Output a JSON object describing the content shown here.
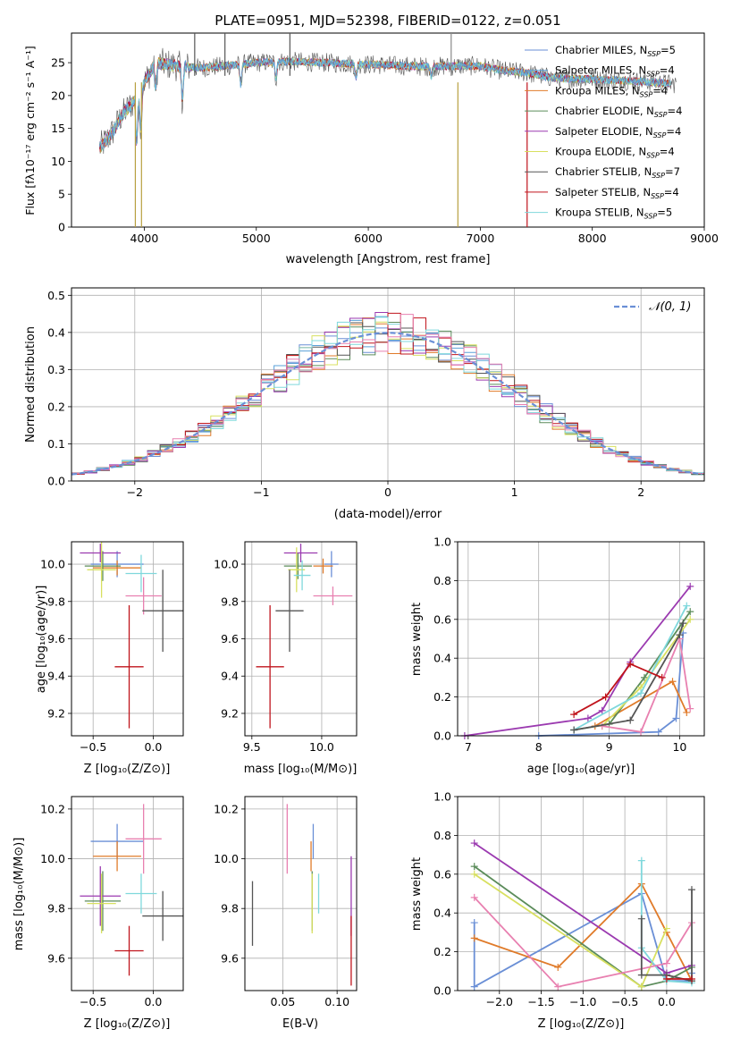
{
  "chart_data": [
    {
      "type": "line",
      "title": "PLATE=0951, MJD=52398, FIBERID=0122, z=0.051",
      "xlabel": "wavelength [Angstrom, rest frame]",
      "ylabel": "Flux [fλ10⁻¹⁷ erg cm⁻² s⁻¹ A⁻¹]",
      "xlim": [
        3350,
        9000
      ],
      "ylim": [
        0,
        29.5
      ],
      "xticks": [
        4000,
        5000,
        6000,
        7000,
        8000,
        9000
      ],
      "yticks": [
        0,
        5,
        10,
        15,
        20,
        25
      ],
      "legend": "right",
      "series": [
        {
          "name": "Chabrier MILES, N_SSP=5",
          "color": "#6a8fd6"
        },
        {
          "name": "Salpeter MILES, N_SSP=4",
          "color": "#5aa0d8"
        },
        {
          "name": "Kroupa MILES, N_SSP=4",
          "color": "#e07b2a"
        },
        {
          "name": "Chabrier ELODIE, N_SSP=4",
          "color": "#5b8c5a"
        },
        {
          "name": "Salpeter ELODIE, N_SSP=4",
          "color": "#9b3ab0"
        },
        {
          "name": "Kroupa ELODIE, N_SSP=4",
          "color": "#d8e060"
        },
        {
          "name": "Chabrier STELIB, N_SSP=7",
          "color": "#555555"
        },
        {
          "name": "Salpeter STELIB, N_SSP=4",
          "color": "#c0141c"
        },
        {
          "name": "Kroupa STELIB, N_SSP=5",
          "color": "#7fd8dc"
        }
      ],
      "spectrum_knots": {
        "x": [
          3600,
          3700,
          3800,
          3900,
          4000,
          4100,
          4300,
          4500,
          4800,
          5000,
          5300,
          5600,
          5900,
          6200,
          6500,
          6800,
          7000,
          7200,
          7400,
          7600,
          7800,
          8000,
          8200,
          8400,
          8700
        ],
        "y": [
          12,
          14,
          17,
          19,
          22,
          25,
          24.5,
          24.2,
          24.6,
          25,
          25.2,
          25,
          24.8,
          24.6,
          24.4,
          24.5,
          24.5,
          23.8,
          23.5,
          22.8,
          22.5,
          22.5,
          22.3,
          22.2,
          21.8
        ]
      }
    },
    {
      "type": "line",
      "xlabel": "(data-model)/error",
      "ylabel": "Normed distribution",
      "xlim": [
        -2.5,
        2.5
      ],
      "ylim": [
        0,
        0.52
      ],
      "xticks": [
        -2,
        -1,
        0,
        1,
        2
      ],
      "yticks": [
        0.0,
        0.1,
        0.2,
        0.3,
        0.4,
        0.5
      ],
      "legend": "top-right",
      "legend_label": "𝒩(0, 1)",
      "bin_width": 0.1
    },
    {
      "type": "scatter",
      "xlabel": "Z [log₁₀(Z/Z⊙)]",
      "ylabel": "age  [log₁₀(age/yr)]",
      "xlim": [
        -0.68,
        0.25
      ],
      "ylim": [
        9.08,
        10.12
      ],
      "xticks": [
        -0.5,
        0.0
      ],
      "yticks": [
        9.2,
        9.4,
        9.6,
        9.8,
        10.0
      ],
      "points": [
        {
          "x": -0.3,
          "y": 10.0,
          "xerr": 0.22,
          "yerr": 0.07,
          "color": "#6a8fd6"
        },
        {
          "x": -0.3,
          "y": 9.98,
          "xerr": 0.2,
          "yerr": 0.04,
          "color": "#e07b2a"
        },
        {
          "x": -0.42,
          "y": 9.99,
          "xerr": 0.15,
          "yerr": 0.08,
          "color": "#5b8c5a"
        },
        {
          "x": -0.44,
          "y": 10.06,
          "xerr": 0.17,
          "yerr": 0.05,
          "color": "#9b3ab0"
        },
        {
          "x": -0.43,
          "y": 9.97,
          "xerr": 0.12,
          "yerr": 0.15,
          "color": "#d8e060"
        },
        {
          "x": -0.1,
          "y": 9.95,
          "xerr": 0.13,
          "yerr": 0.1,
          "color": "#7fd8dc"
        },
        {
          "x": -0.08,
          "y": 9.83,
          "xerr": 0.15,
          "yerr": 0.1,
          "color": "#e880b0"
        },
        {
          "x": 0.08,
          "y": 9.75,
          "xerr": 0.17,
          "yerr": 0.22,
          "color": "#555555"
        },
        {
          "x": -0.2,
          "y": 9.45,
          "xerr": 0.12,
          "yerr": 0.33,
          "color": "#c0141c"
        }
      ]
    },
    {
      "type": "scatter",
      "xlabel": "mass [log₁₀(M/M⊙)]",
      "xlim": [
        9.45,
        10.25
      ],
      "ylim": [
        9.08,
        10.12
      ],
      "xticks": [
        9.5,
        10.0
      ],
      "yticks": [
        9.2,
        9.4,
        9.6,
        9.8,
        10.0
      ],
      "points": [
        {
          "x": 10.07,
          "y": 10.0,
          "xerr": 0.05,
          "yerr": 0.07,
          "color": "#6a8fd6"
        },
        {
          "x": 10.01,
          "y": 9.99,
          "xerr": 0.07,
          "yerr": 0.04,
          "color": "#e07b2a"
        },
        {
          "x": 9.83,
          "y": 9.99,
          "xerr": 0.1,
          "yerr": 0.07,
          "color": "#5b8c5a"
        },
        {
          "x": 9.85,
          "y": 10.06,
          "xerr": 0.12,
          "yerr": 0.05,
          "color": "#9b3ab0"
        },
        {
          "x": 9.82,
          "y": 9.97,
          "xerr": 0.06,
          "yerr": 0.12,
          "color": "#d8e060"
        },
        {
          "x": 9.86,
          "y": 9.94,
          "xerr": 0.06,
          "yerr": 0.08,
          "color": "#7fd8dc"
        },
        {
          "x": 10.08,
          "y": 9.83,
          "xerr": 0.14,
          "yerr": 0.05,
          "color": "#e880b0"
        },
        {
          "x": 9.77,
          "y": 9.75,
          "xerr": 0.1,
          "yerr": 0.22,
          "color": "#555555"
        },
        {
          "x": 9.63,
          "y": 9.45,
          "xerr": 0.1,
          "yerr": 0.33,
          "color": "#c0141c"
        }
      ]
    },
    {
      "type": "line",
      "xlabel": "age  [log₁₀(age/yr)]",
      "ylabel": "mass weight",
      "xlim": [
        6.85,
        10.35
      ],
      "ylim": [
        0,
        1.0
      ],
      "xticks": [
        7,
        8,
        9,
        10
      ],
      "yticks": [
        0.0,
        0.2,
        0.4,
        0.6,
        0.8,
        1.0
      ],
      "series": [
        {
          "color": "#6a8fd6",
          "x": [
            8.0,
            9.7,
            9.95,
            10.05
          ],
          "y": [
            0.0,
            0.02,
            0.09,
            0.53
          ]
        },
        {
          "color": "#e07b2a",
          "x": [
            8.8,
            9.9,
            10.1
          ],
          "y": [
            0.05,
            0.28,
            0.12
          ]
        },
        {
          "color": "#5b8c5a",
          "x": [
            8.5,
            9.0,
            9.5,
            10.15
          ],
          "y": [
            0.03,
            0.06,
            0.3,
            0.64
          ]
        },
        {
          "color": "#9b3ab0",
          "x": [
            6.95,
            8.7,
            8.9,
            9.3,
            10.15
          ],
          "y": [
            0.0,
            0.09,
            0.13,
            0.38,
            0.77
          ]
        },
        {
          "color": "#d8e060",
          "x": [
            8.9,
            9.45,
            10.15
          ],
          "y": [
            0.05,
            0.25,
            0.6
          ]
        },
        {
          "color": "#7fd8dc",
          "x": [
            8.5,
            9.45,
            10.1
          ],
          "y": [
            0.03,
            0.22,
            0.67
          ]
        },
        {
          "color": "#e880b0",
          "x": [
            8.9,
            9.45,
            10.0,
            10.15
          ],
          "y": [
            0.05,
            0.02,
            0.5,
            0.14
          ]
        },
        {
          "color": "#555555",
          "x": [
            8.5,
            9.3,
            10.0,
            10.05
          ],
          "y": [
            0.03,
            0.08,
            0.52,
            0.58
          ]
        },
        {
          "color": "#c0141c",
          "x": [
            8.5,
            8.95,
            9.3,
            9.75
          ],
          "y": [
            0.11,
            0.2,
            0.37,
            0.3
          ]
        }
      ]
    },
    {
      "type": "scatter",
      "xlabel": "Z [log₁₀(Z/Z⊙)]",
      "ylabel": "mass [log₁₀(M/M⊙)]",
      "xlim": [
        -0.68,
        0.25
      ],
      "ylim": [
        9.47,
        10.25
      ],
      "xticks": [
        -0.5,
        0.0
      ],
      "yticks": [
        9.6,
        9.8,
        10.0,
        10.2
      ],
      "points": [
        {
          "x": -0.3,
          "y": 10.07,
          "xerr": 0.22,
          "yerr": 0.07,
          "color": "#6a8fd6"
        },
        {
          "x": -0.3,
          "y": 10.01,
          "xerr": 0.2,
          "yerr": 0.06,
          "color": "#e07b2a"
        },
        {
          "x": -0.42,
          "y": 9.83,
          "xerr": 0.15,
          "yerr": 0.12,
          "color": "#5b8c5a"
        },
        {
          "x": -0.44,
          "y": 9.85,
          "xerr": 0.17,
          "yerr": 0.12,
          "color": "#9b3ab0"
        },
        {
          "x": -0.43,
          "y": 9.82,
          "xerr": 0.12,
          "yerr": 0.12,
          "color": "#d8e060"
        },
        {
          "x": -0.1,
          "y": 9.86,
          "xerr": 0.13,
          "yerr": 0.08,
          "color": "#7fd8dc"
        },
        {
          "x": -0.08,
          "y": 10.08,
          "xerr": 0.15,
          "yerr": 0.14,
          "color": "#e880b0"
        },
        {
          "x": 0.08,
          "y": 9.77,
          "xerr": 0.17,
          "yerr": 0.1,
          "color": "#555555"
        },
        {
          "x": -0.2,
          "y": 9.63,
          "xerr": 0.12,
          "yerr": 0.1,
          "color": "#c0141c"
        }
      ]
    },
    {
      "type": "scatter",
      "xlabel": "E(B-V)",
      "xlim": [
        0.015,
        0.118
      ],
      "ylim": [
        9.47,
        10.25
      ],
      "xticks": [
        0.05,
        0.1
      ],
      "yticks": [
        9.6,
        9.8,
        10.0,
        10.2
      ],
      "points": [
        {
          "x": 0.078,
          "y": 10.07,
          "yerr": 0.07,
          "color": "#6a8fd6"
        },
        {
          "x": 0.076,
          "y": 10.01,
          "yerr": 0.06,
          "color": "#e07b2a"
        },
        {
          "x": 0.077,
          "y": 9.83,
          "yerr": 0.12,
          "color": "#5b8c5a"
        },
        {
          "x": 0.113,
          "y": 9.85,
          "yerr": 0.16,
          "color": "#9b3ab0"
        },
        {
          "x": 0.077,
          "y": 9.82,
          "yerr": 0.12,
          "color": "#d8e060"
        },
        {
          "x": 0.083,
          "y": 9.86,
          "yerr": 0.08,
          "color": "#7fd8dc"
        },
        {
          "x": 0.054,
          "y": 10.08,
          "yerr": 0.14,
          "color": "#e880b0"
        },
        {
          "x": 0.022,
          "y": 9.78,
          "yerr": 0.13,
          "color": "#555555"
        },
        {
          "x": 0.113,
          "y": 9.63,
          "yerr": 0.14,
          "color": "#c0141c"
        }
      ]
    },
    {
      "type": "line",
      "xlabel": "Z [log₁₀(Z/Z⊙)]",
      "ylabel": "mass weight",
      "xlim": [
        -2.5,
        0.45
      ],
      "ylim": [
        0,
        1.0
      ],
      "xticks": [
        -2.0,
        -1.5,
        -1.0,
        -0.5,
        0.0
      ],
      "yticks": [
        0.0,
        0.2,
        0.4,
        0.6,
        0.8,
        1.0
      ],
      "series": [
        {
          "color": "#6a8fd6",
          "x": [
            -2.3,
            -2.3,
            -0.3,
            0.0,
            0.3,
            0.3
          ],
          "y": [
            0.35,
            0.02,
            0.5,
            0.05,
            0.05,
            0.09
          ]
        },
        {
          "color": "#e07b2a",
          "x": [
            -2.3,
            -1.3,
            -0.3,
            0.0,
            0.3
          ],
          "y": [
            0.27,
            0.12,
            0.55,
            0.3,
            0.05
          ]
        },
        {
          "color": "#5b8c5a",
          "x": [
            -2.3,
            -0.3,
            0.0,
            0.3
          ],
          "y": [
            0.64,
            0.02,
            0.05,
            0.12
          ]
        },
        {
          "color": "#9b3ab0",
          "x": [
            -2.3,
            0.0,
            0.3
          ],
          "y": [
            0.76,
            0.09,
            0.13
          ]
        },
        {
          "color": "#d8e060",
          "x": [
            -2.3,
            -0.3,
            0.0
          ],
          "y": [
            0.6,
            0.02,
            0.32
          ]
        },
        {
          "color": "#7fd8dc",
          "x": [
            -0.3,
            -0.3,
            0.0,
            0.3
          ],
          "y": [
            0.67,
            0.22,
            0.05,
            0.04
          ]
        },
        {
          "color": "#e880b0",
          "x": [
            -2.3,
            -1.3,
            0.0,
            0.3
          ],
          "y": [
            0.48,
            0.02,
            0.14,
            0.35
          ]
        },
        {
          "color": "#555555",
          "x": [
            -0.3,
            -0.3,
            0.0,
            0.3,
            0.3
          ],
          "y": [
            0.37,
            0.08,
            0.08,
            0.05,
            0.52
          ]
        },
        {
          "color": "#c0141c",
          "x": [
            0.0,
            0.3
          ],
          "y": [
            0.06,
            0.06
          ]
        }
      ]
    }
  ]
}
